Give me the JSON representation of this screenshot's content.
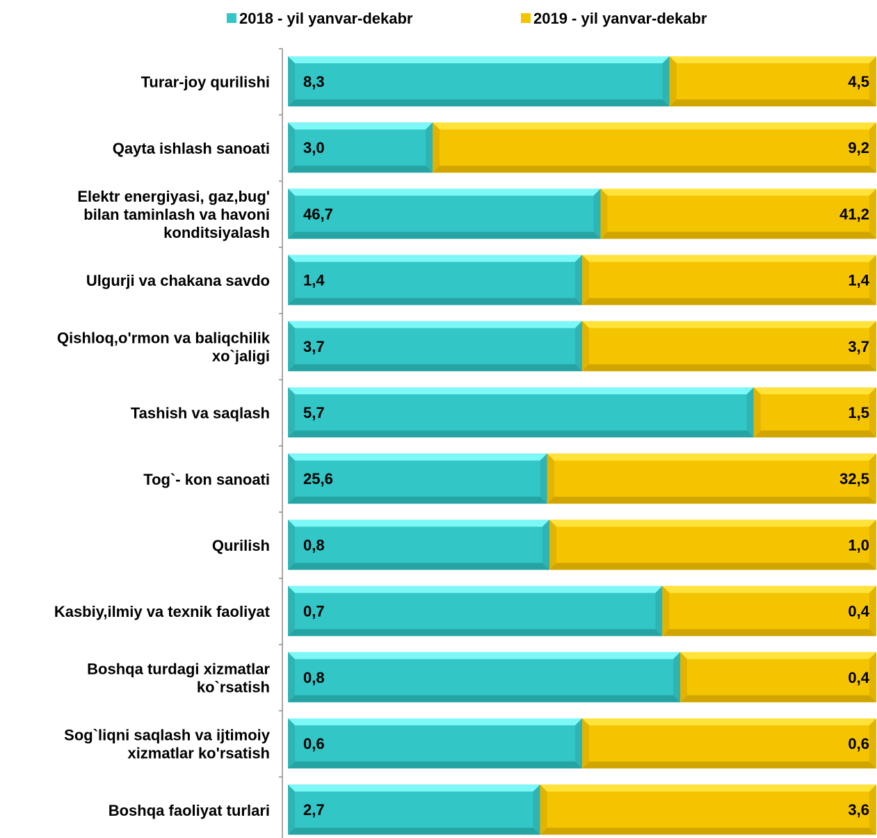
{
  "chart_data": {
    "type": "bar",
    "orientation": "horizontal",
    "stacking": "100% stacked",
    "legend_position": "top",
    "grid": false,
    "colors": {
      "2018": "#33c6c6",
      "2019": "#f5c400"
    },
    "categories": [
      "Turar-joy qurilishi",
      "Qayta ishlash sanoati",
      "Elektr energiyasi, gaz,bug' bilan taminlash va havoni konditsiyalash",
      "Ulgurji va chakana savdo",
      "Qishloq,o'rmon va baliqchilik xo`jaligi",
      "Tashish va saqlash",
      "Tog`- kon sanoati",
      "Qurilish",
      "Kasbiy,ilmiy va texnik faoliyat",
      "Boshqa turdagi xizmatlar ko`rsatish",
      "Sog`liqni saqlash va ijtimoiy xizmatlar ko'rsatish",
      "Boshqa faoliyat turlari"
    ],
    "category_lines": [
      [
        "Turar-joy qurilishi"
      ],
      [
        "Qayta ishlash sanoati"
      ],
      [
        "Elektr energiyasi, gaz,bug'",
        "bilan taminlash va havoni",
        "konditsiyalash"
      ],
      [
        "Ulgurji va chakana savdo"
      ],
      [
        "Qishloq,o'rmon va baliqchilik",
        "xo`jaligi"
      ],
      [
        "Tashish va saqlash"
      ],
      [
        "Tog`- kon sanoati"
      ],
      [
        "Qurilish"
      ],
      [
        "Kasbiy,ilmiy va texnik faoliyat"
      ],
      [
        "Boshqa turdagi xizmatlar",
        "ko`rsatish"
      ],
      [
        "Sog`liqni saqlash va ijtimoiy",
        "xizmatlar ko'rsatish"
      ],
      [
        "Boshqa faoliyat turlari"
      ]
    ],
    "series": [
      {
        "name": "2018 - yil yanvar-dekabr",
        "values": [
          8.3,
          3.0,
          46.7,
          1.4,
          3.7,
          5.7,
          25.6,
          0.8,
          0.7,
          0.8,
          0.6,
          2.7
        ],
        "labels": [
          "8,3",
          "3,0",
          "46,7",
          "1,4",
          "3,7",
          "5,7",
          "25,6",
          "0,8",
          "0,7",
          "0,8",
          "0,6",
          "2,7"
        ]
      },
      {
        "name": "2019 - yil yanvar-dekabr",
        "values": [
          4.5,
          9.2,
          41.2,
          1.4,
          3.7,
          1.5,
          32.5,
          1.0,
          0.4,
          0.4,
          0.6,
          3.6
        ],
        "labels": [
          "4,5",
          "9,2",
          "41,2",
          "1,4",
          "3,7",
          "1,5",
          "32,5",
          "1,0",
          "0,4",
          "0,4",
          "0,6",
          "3,6"
        ]
      }
    ]
  }
}
